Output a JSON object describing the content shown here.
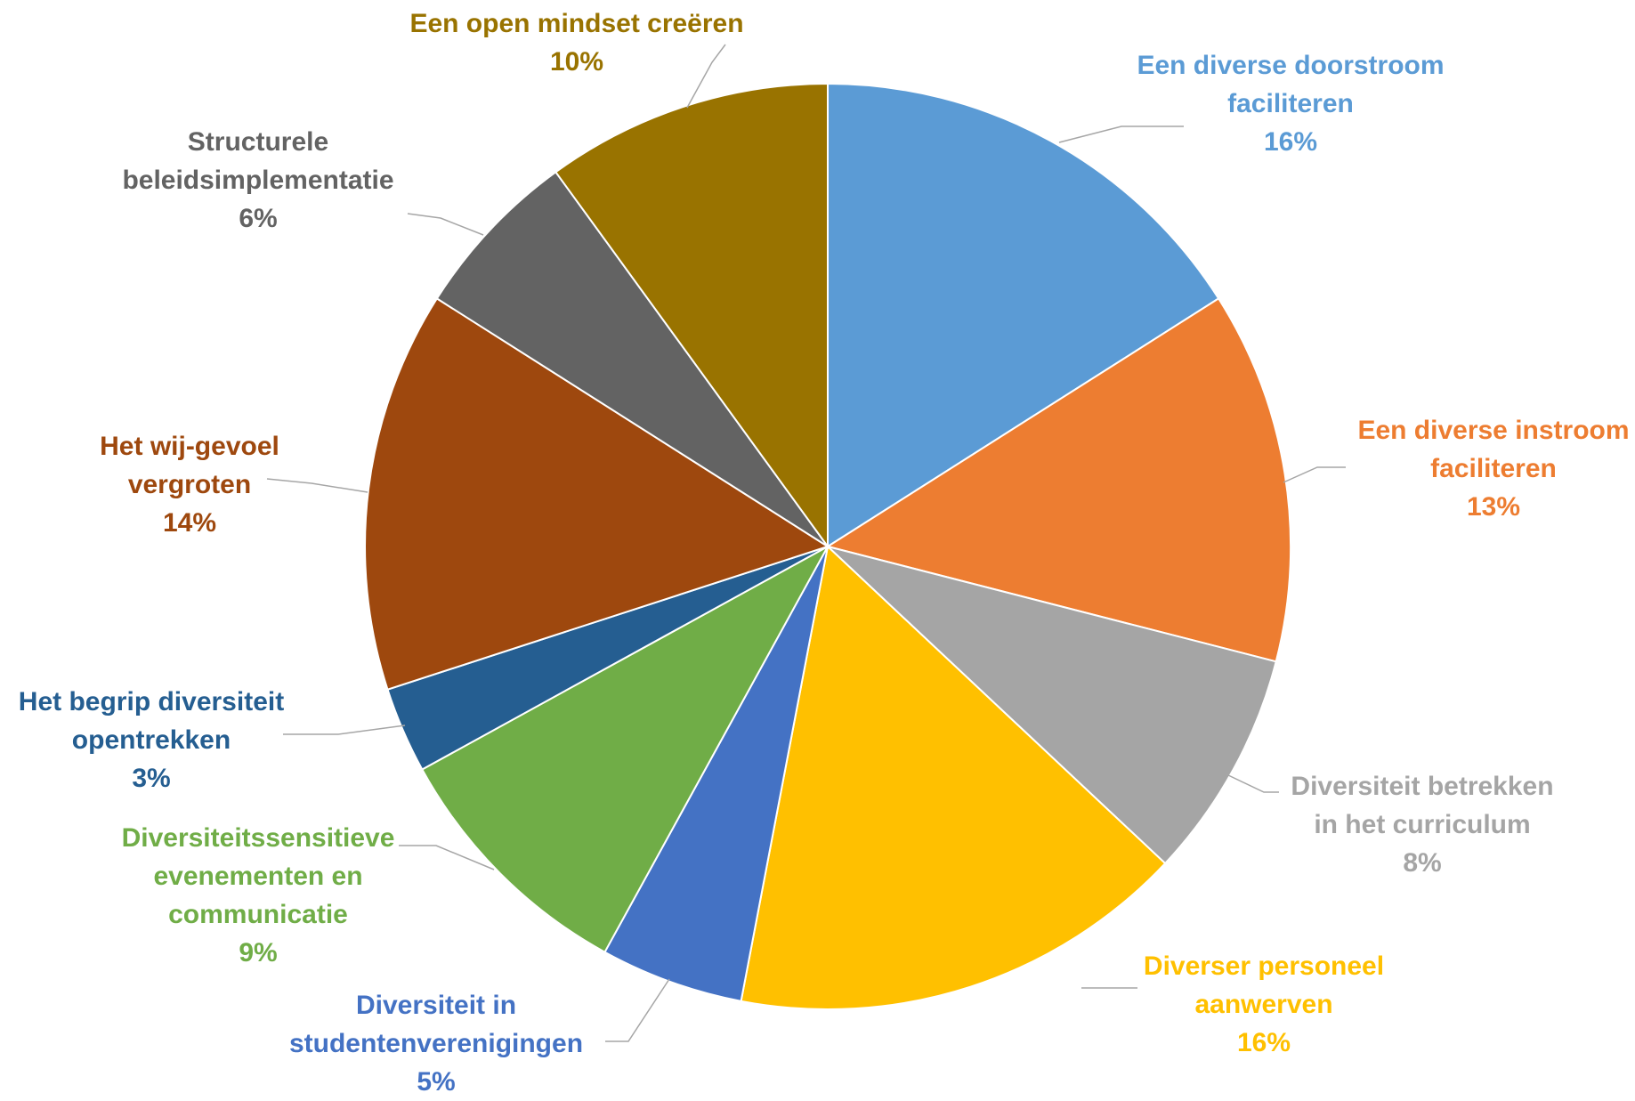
{
  "chart_data": {
    "type": "pie",
    "slices": [
      {
        "name_lines": [
          "Een diverse doorstroom",
          "faciliteren"
        ],
        "pct_label": "16%",
        "value": 16,
        "color": "#5B9BD5"
      },
      {
        "name_lines": [
          "Een diverse instroom",
          "faciliteren"
        ],
        "pct_label": "13%",
        "value": 13,
        "color": "#ED7D31"
      },
      {
        "name_lines": [
          "Diversiteit betrekken",
          "in het curriculum"
        ],
        "pct_label": "8%",
        "value": 8,
        "color": "#A5A5A5"
      },
      {
        "name_lines": [
          "Diverser personeel",
          "aanwerven"
        ],
        "pct_label": "16%",
        "value": 16,
        "color": "#FFC000"
      },
      {
        "name_lines": [
          "Diversiteit in",
          "studentenverenigingen"
        ],
        "pct_label": "5%",
        "value": 5,
        "color": "#4472C4"
      },
      {
        "name_lines": [
          "Diversiteitssensitieve",
          "evenementen en",
          "communicatie"
        ],
        "pct_label": "9%",
        "value": 9,
        "color": "#70AD47"
      },
      {
        "name_lines": [
          "Het begrip diversiteit",
          "opentrekken"
        ],
        "pct_label": "3%",
        "value": 3,
        "color": "#255E91"
      },
      {
        "name_lines": [
          "Het wij-gevoel",
          "vergroten"
        ],
        "pct_label": "14%",
        "value": 14,
        "color": "#9E480E"
      },
      {
        "name_lines": [
          "Structurele",
          "beleidsimplementatie"
        ],
        "pct_label": "6%",
        "value": 6,
        "color": "#636363"
      },
      {
        "name_lines": [
          "Een open mindset creëren"
        ],
        "pct_label": "10%",
        "value": 10,
        "color": "#997300"
      }
    ],
    "start_angle_deg": 0,
    "direction": "clockwise"
  }
}
